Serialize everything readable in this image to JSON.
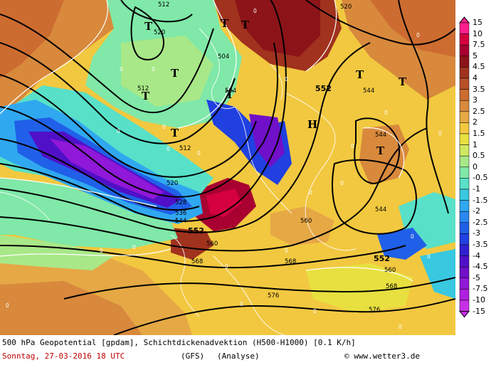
{
  "colorbar": {
    "labels": [
      "15",
      "10",
      "7.5",
      "5",
      "4.5",
      "4",
      "3.5",
      "3",
      "2.5",
      "2",
      "1.5",
      "1",
      "0.5",
      "0",
      "-0.5",
      "-1",
      "-1.5",
      "-2",
      "-2.5",
      "-3",
      "-3.5",
      "-4",
      "-4.5",
      "-5",
      "-7.5",
      "-10",
      "-15"
    ],
    "colors": [
      "#ff1f8f",
      "#d4003f",
      "#a80030",
      "#8c1418",
      "#a0321e",
      "#b8502a",
      "#cd6c30",
      "#d8893c",
      "#e6a845",
      "#f2c840",
      "#e8e040",
      "#cfe860",
      "#a8e888",
      "#80e8a8",
      "#58e0c8",
      "#38c8e0",
      "#30a8f0",
      "#2a88f0",
      "#2060e8",
      "#2040e0",
      "#3020d0",
      "#5010c8",
      "#7010c8",
      "#9018d8",
      "#b020e0",
      "#c830e8"
    ]
  },
  "map": {
    "high_markers": [
      "H"
    ],
    "low_markers": [
      "T",
      "T",
      "T",
      "T",
      "T",
      "T",
      "T",
      "T",
      "T",
      "T"
    ],
    "contour_labels": [
      "512",
      "520",
      "504",
      "520",
      "512",
      "504",
      "552",
      "544",
      "544",
      "544",
      "528",
      "536",
      "544",
      "552",
      "560",
      "560",
      "568",
      "568",
      "576",
      "576",
      "560",
      "552",
      "568",
      "520",
      "512"
    ],
    "zero_labels": [
      "0",
      "0",
      "0",
      "0",
      "0",
      "0",
      "0",
      "0",
      "0",
      "0",
      "0",
      "0",
      "0",
      "0",
      "0",
      "0",
      "0",
      "0",
      "0",
      "0",
      "0",
      "0",
      "0",
      "0"
    ]
  },
  "caption": {
    "title": "500 hPa Geopotential [gpdam], Schichtdickenadvektion (H500-H1000) [0.1 K/h]",
    "date": "Sonntag, 27-03-2016  18 UTC",
    "model": "(GFS)",
    "type": "(Analyse)",
    "copyright": "© www.wetter3.de"
  }
}
